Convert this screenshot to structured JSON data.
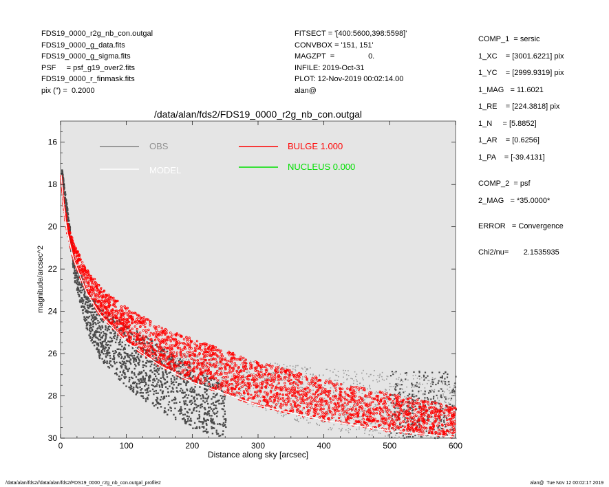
{
  "header_left": [
    "FDS19_0000_r2g_nb_con.outgal",
    "FDS19_0000_g_data.fits",
    "FDS19_0000_g_sigma.fits",
    "PSF     = psf_g19_over2.fits",
    "FDS19_0000_r_finmask.fits",
    "pix (\") =  0.2000"
  ],
  "header_mid": [
    "FITSECT = '[400:5600,398:5598]'",
    "CONVBOX = '151, 151'",
    "MAGZPT  =                0.",
    "INFILE: 2019-Oct-31",
    "PLOT: 12-Nov-2019 00:02:14.00",
    "alan@"
  ],
  "params": [
    "COMP_1  = sersic",
    "1_XC    = [3001.6221] pix",
    "1_YC    = [2999.9319] pix",
    "1_MAG   = 11.6021",
    "1_RE    = [224.3818] pix",
    "1_N     = [5.8852]",
    "1_AR    = [0.6256]",
    "1_PA    = [-39.4131]",
    "COMP_2  = psf",
    "2_MAG   = *35.0000*",
    "ERROR   = Convergence",
    "Chi2/nu=       2.1535935"
  ],
  "footer": {
    "left": "/data/alan/fds2//data/alan/fds2/FDS19_0000_r2g_nb_con.outgal_profile2",
    "right": "alan@  Tue Nov 12 00:02:17 2019"
  },
  "colors": {
    "obs": "#4a4a4a",
    "obs_outer": "#9a9a9a",
    "model": "#ffffff",
    "bulge": "#ff0000",
    "nucleus": "#00e000",
    "plot_bg": "#e5e5e5"
  },
  "chart_data": {
    "type": "scatter",
    "title": "/data/alan/fds2/FDS19_0000_r2g_nb_con.outgal",
    "xlabel": "Distance along sky [arcsec]",
    "ylabel": "magnitude/arcsec^2",
    "xlim": [
      0,
      600
    ],
    "ylim": [
      30,
      15
    ],
    "y_inverted": true,
    "xticks": [
      0,
      100,
      200,
      300,
      400,
      500,
      600
    ],
    "yticks": [
      16,
      18,
      20,
      22,
      24,
      26,
      28,
      30
    ],
    "legend": [
      {
        "label": "OBS",
        "color": "#808080"
      },
      {
        "label": "MODEL",
        "color": "#ffffff"
      },
      {
        "label": "BULGE  1.000",
        "color": "#ff0000"
      },
      {
        "label": "NUCLEUS  0.000",
        "color": "#00e000"
      }
    ],
    "series": [
      {
        "name": "BULGE  1.000",
        "bands": [
          {
            "x": [
              1,
              5,
              10,
              20,
              40,
              60,
              100,
              150,
              200,
              300,
              400,
              500,
              600
            ],
            "y": [
              17.6,
              18.9,
              19.7,
              20.8,
              22.0,
              22.8,
              23.8,
              24.7,
              25.3,
              26.4,
              27.2,
              27.9,
              28.5
            ]
          },
          {
            "x": [
              1,
              5,
              10,
              20,
              40,
              60,
              100,
              150,
              200,
              300,
              400,
              500,
              600
            ],
            "y": [
              17.6,
              19.2,
              20.3,
              21.6,
              23.2,
              24.2,
              25.5,
              26.6,
              27.4,
              28.5,
              29.2,
              29.7,
              30.0
            ]
          }
        ]
      },
      {
        "name": "OBS",
        "inner_envelope": {
          "x": [
            1,
            20,
            40,
            60,
            100,
            150,
            200,
            250
          ],
          "y_top": [
            17.2,
            21.5,
            23.0,
            23.8,
            24.6,
            25.6,
            26.6,
            27.5
          ],
          "y_bottom": [
            17.5,
            22.5,
            25.0,
            26.3,
            27.6,
            28.7,
            29.5,
            30.0
          ]
        },
        "outer_envelope": {
          "x": [
            150,
            200,
            300,
            400,
            500,
            600
          ],
          "y_top": [
            25.9,
            26.0,
            26.3,
            26.7,
            26.8,
            27.3
          ],
          "y_bottom": [
            26.5,
            27.3,
            28.6,
            29.6,
            30.0,
            30.0
          ]
        }
      }
    ]
  }
}
